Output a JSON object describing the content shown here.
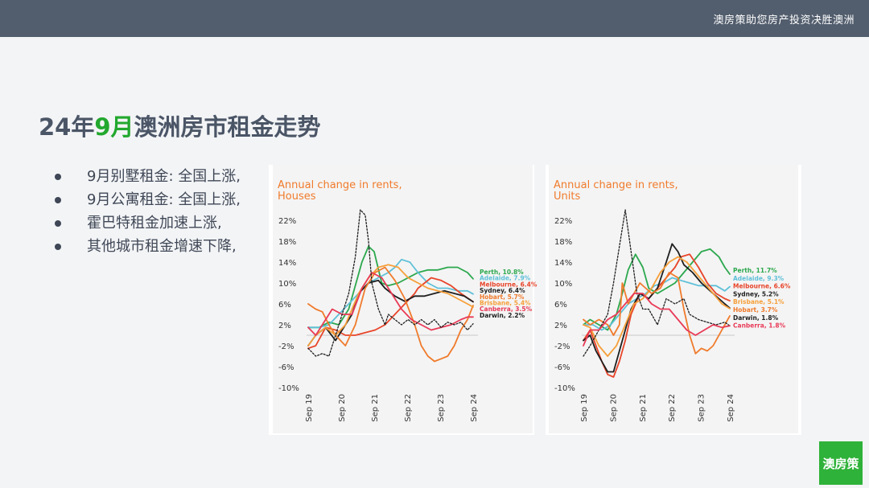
{
  "header": {
    "slogan": "澳房策助您房产投资决胜澳洲"
  },
  "title": {
    "prefix": "24年",
    "highlight": "9月",
    "suffix": "澳洲房市租金走势"
  },
  "bullets": [
    "9月别墅租金: 全国上涨,",
    "9月公寓租金: 全国上涨,",
    "霍巴特租金加速上涨,",
    "其他城市租金增速下降,"
  ],
  "logo": {
    "text": "澳房策"
  },
  "colors": {
    "accent": "#22a82e",
    "title_orange": "#f07b2c",
    "header_bg": "#525d6d"
  },
  "chart_data": [
    {
      "type": "line",
      "title": "Annual change in rents,",
      "subtitle": "Houses",
      "yticks": [
        "22%",
        "18%",
        "14%",
        "10%",
        "6%",
        "2%",
        "-2%",
        "-6%",
        "-10%"
      ],
      "ylim": [
        -10,
        22
      ],
      "xlim": [
        2019.67,
        2024.67
      ],
      "xticks": [
        {
          "label": "Sep 19",
          "x": 2019.67
        },
        {
          "label": "Sep 20",
          "x": 2020.67
        },
        {
          "label": "Sep 21",
          "x": 2021.67
        },
        {
          "label": "Sep 22",
          "x": 2022.67
        },
        {
          "label": "Sep 23",
          "x": 2023.67
        },
        {
          "label": "Sep 24",
          "x": 2024.67
        }
      ],
      "series": [
        {
          "name": "Perth, 10.8%",
          "color": "#2ca84e",
          "dash": false,
          "x": [
            2019.67,
            2020.0,
            2020.3,
            2020.6,
            2020.9,
            2021.1,
            2021.3,
            2021.5,
            2021.67,
            2021.9,
            2022.1,
            2022.4,
            2022.7,
            2023.0,
            2023.3,
            2023.6,
            2023.9,
            2024.2,
            2024.5,
            2024.67
          ],
          "y": [
            1.5,
            1.5,
            2.5,
            2.0,
            5,
            9.5,
            14,
            17,
            16,
            10,
            9.5,
            10,
            11,
            12,
            12.5,
            12.5,
            13,
            13,
            12,
            10.8
          ]
        },
        {
          "name": "Adelaide, 7.9%",
          "color": "#5fc0d8",
          "dash": false,
          "x": [
            2019.67,
            2020.0,
            2020.3,
            2020.6,
            2020.9,
            2021.2,
            2021.5,
            2021.8,
            2022.1,
            2022.3,
            2022.5,
            2022.75,
            2023.0,
            2023.3,
            2023.6,
            2023.9,
            2024.2,
            2024.5,
            2024.67
          ],
          "y": [
            1.5,
            1.5,
            2.0,
            4.0,
            6,
            8,
            10,
            11,
            12,
            13,
            14.5,
            14,
            12,
            10,
            9,
            9,
            8.5,
            8.5,
            7.9
          ]
        },
        {
          "name": "Melbourne, 6.4%",
          "color": "#e8452a",
          "dash": false,
          "x": [
            2019.67,
            2019.9,
            2020.2,
            2020.5,
            2020.8,
            2021.1,
            2021.4,
            2021.7,
            2022.0,
            2022.3,
            2022.6,
            2022.9,
            2023.0,
            2023.2,
            2023.4,
            2023.7,
            2024.0,
            2024.3,
            2024.67
          ],
          "y": [
            -2.5,
            -2,
            1.5,
            1,
            0,
            0,
            0.5,
            1,
            2,
            4,
            6,
            8,
            9,
            10,
            11,
            10.5,
            9.5,
            8,
            6.4
          ]
        },
        {
          "name": "Sydney, 6.4%",
          "color": "#1f1f1f",
          "dash": false,
          "x": [
            2019.67,
            2019.9,
            2020.2,
            2020.5,
            2020.8,
            2021.0,
            2021.2,
            2021.5,
            2021.8,
            2022.0,
            2022.3,
            2022.6,
            2022.9,
            2023.2,
            2023.5,
            2023.8,
            2024.1,
            2024.4,
            2024.67
          ],
          "y": [
            -2,
            0,
            1.5,
            -1,
            2,
            4,
            8,
            10,
            10.5,
            9,
            7.5,
            6.5,
            7.5,
            7.5,
            8,
            8.5,
            8,
            7.5,
            6.4
          ]
        },
        {
          "name": "Hobart, 5.7%",
          "color": "#f07b2c",
          "dash": false,
          "x": [
            2019.67,
            2019.9,
            2020.1,
            2020.3,
            2020.5,
            2020.8,
            2021.1,
            2021.4,
            2021.7,
            2022.0,
            2022.3,
            2022.6,
            2022.9,
            2023.1,
            2023.3,
            2023.5,
            2023.7,
            2023.9,
            2024.1,
            2024.3,
            2024.5,
            2024.67
          ],
          "y": [
            6,
            5,
            4.5,
            2,
            0,
            -2,
            2,
            9,
            12,
            13,
            10.5,
            7,
            2,
            -2,
            -4,
            -5,
            -4.5,
            -4,
            -2,
            1,
            3,
            5.7
          ]
        },
        {
          "name": "Brisbane, 5.4%",
          "color": "#f6a03a",
          "dash": false,
          "x": [
            2019.67,
            2019.9,
            2020.2,
            2020.5,
            2020.8,
            2021.0,
            2021.2,
            2021.5,
            2021.8,
            2022.1,
            2022.4,
            2022.7,
            2023.0,
            2023.3,
            2023.6,
            2023.9,
            2024.2,
            2024.5,
            2024.67
          ],
          "y": [
            -2,
            0,
            1.5,
            0,
            2,
            5,
            8,
            11,
            13,
            13.5,
            13,
            11,
            10,
            9,
            8.5,
            8,
            7,
            6,
            5.4
          ]
        },
        {
          "name": "Canberra, 3.5%",
          "color": "#e93a57",
          "dash": false,
          "x": [
            2019.67,
            2019.9,
            2020.2,
            2020.4,
            2020.7,
            2021.0,
            2021.3,
            2021.6,
            2021.9,
            2022.2,
            2022.5,
            2022.8,
            2023.1,
            2023.4,
            2023.7,
            2024.0,
            2024.3,
            2024.5,
            2024.67
          ],
          "y": [
            1.5,
            0,
            3,
            5,
            4,
            4,
            9,
            12,
            11,
            8,
            5,
            3,
            2,
            1,
            1.5,
            2,
            3,
            3.5,
            3.5
          ]
        },
        {
          "name": "Darwin, 2.2%",
          "color": "#1f1f1f",
          "dash": true,
          "x": [
            2019.67,
            2019.9,
            2020.1,
            2020.3,
            2020.5,
            2020.7,
            2020.9,
            2021.1,
            2021.25,
            2021.4,
            2021.5,
            2021.6,
            2021.8,
            2022.0,
            2022.1,
            2022.3,
            2022.5,
            2022.7,
            2022.9,
            2023.1,
            2023.3,
            2023.5,
            2023.7,
            2023.9,
            2024.1,
            2024.3,
            2024.5,
            2024.67
          ],
          "y": [
            -2.5,
            -4,
            -3.5,
            -4,
            0,
            4,
            8,
            15,
            24,
            23,
            18,
            10,
            5,
            2,
            4,
            3,
            2,
            3,
            2,
            3,
            2,
            3,
            1.5,
            2.5,
            2,
            2.5,
            1,
            2.2
          ]
        }
      ]
    },
    {
      "type": "line",
      "title": "Annual change in rents,",
      "subtitle": "Units",
      "yticks": [
        "22%",
        "18%",
        "14%",
        "10%",
        "6%",
        "2%",
        "-2%",
        "-6%",
        "-10%"
      ],
      "ylim": [
        -10,
        22
      ],
      "xlim": [
        2019.67,
        2024.67
      ],
      "xticks": [
        {
          "label": "Sep 19",
          "x": 2019.67
        },
        {
          "label": "Sep 20",
          "x": 2020.67
        },
        {
          "label": "Sep 21",
          "x": 2021.67
        },
        {
          "label": "Sep 22",
          "x": 2022.67
        },
        {
          "label": "Sep 23",
          "x": 2023.67
        },
        {
          "label": "Sep 24",
          "x": 2024.67
        }
      ],
      "series": [
        {
          "name": "Perth, 11.7%",
          "color": "#2ca84e",
          "dash": false,
          "x": [
            2019.67,
            2019.9,
            2020.2,
            2020.5,
            2020.8,
            2021.0,
            2021.2,
            2021.45,
            2021.7,
            2021.9,
            2022.2,
            2022.5,
            2022.8,
            2023.1,
            2023.4,
            2023.7,
            2024.0,
            2024.3,
            2024.5,
            2024.67
          ],
          "y": [
            2,
            3,
            2,
            1,
            4,
            8,
            12.5,
            15.5,
            13,
            9,
            8,
            9,
            10,
            12,
            14,
            16,
            16.5,
            15,
            13,
            11.7
          ]
        },
        {
          "name": "Adelaide, 9.3%",
          "color": "#5fc0d8",
          "dash": false,
          "x": [
            2019.67,
            2020.0,
            2020.3,
            2020.6,
            2020.9,
            2021.2,
            2021.5,
            2021.8,
            2022.1,
            2022.4,
            2022.7,
            2023.0,
            2023.3,
            2023.6,
            2023.9,
            2024.2,
            2024.5,
            2024.67
          ],
          "y": [
            2,
            2,
            1,
            2,
            4,
            6,
            7,
            8,
            9.5,
            10,
            11,
            10.5,
            10,
            9.5,
            9.5,
            9.5,
            8.5,
            9.3
          ]
        },
        {
          "name": "Melbourne, 6.6%",
          "color": "#e8452a",
          "dash": false,
          "x": [
            2019.67,
            2019.9,
            2020.1,
            2020.3,
            2020.5,
            2020.7,
            2020.9,
            2021.1,
            2021.3,
            2021.6,
            2021.9,
            2022.2,
            2022.5,
            2022.8,
            2023.0,
            2023.3,
            2023.6,
            2023.9,
            2024.2,
            2024.5,
            2024.67
          ],
          "y": [
            -1,
            1,
            -2,
            -5,
            -7.5,
            -8,
            -5,
            -1,
            4,
            8,
            7,
            9,
            11,
            13,
            15,
            15.5,
            13,
            10,
            8,
            7,
            6.6
          ]
        },
        {
          "name": "Sydney, 5.2%",
          "color": "#1f1f1f",
          "dash": false,
          "x": [
            2019.67,
            2019.9,
            2020.1,
            2020.3,
            2020.5,
            2020.7,
            2020.9,
            2021.1,
            2021.3,
            2021.6,
            2021.9,
            2022.2,
            2022.5,
            2022.7,
            2022.9,
            2023.1,
            2023.4,
            2023.7,
            2024.0,
            2024.3,
            2024.5,
            2024.67
          ],
          "y": [
            -1,
            0,
            -3,
            -5,
            -7,
            -7,
            -3,
            1,
            5,
            8,
            7,
            9,
            14,
            17.5,
            16,
            13.5,
            12,
            10,
            8.5,
            7,
            6,
            5.2
          ]
        },
        {
          "name": "Brisbane, 5.1%",
          "color": "#f6a03a",
          "dash": false,
          "x": [
            2019.67,
            2019.9,
            2020.2,
            2020.5,
            2020.8,
            2021.1,
            2021.4,
            2021.7,
            2022.0,
            2022.3,
            2022.6,
            2022.9,
            2023.2,
            2023.5,
            2023.8,
            2024.1,
            2024.4,
            2024.67
          ],
          "y": [
            2,
            1.5,
            -2,
            -4,
            -2,
            2,
            6,
            7,
            9,
            12,
            14,
            15,
            14,
            12,
            10,
            8,
            6,
            5.1
          ]
        },
        {
          "name": "Hobart, 3.7%",
          "color": "#f07b2c",
          "dash": false,
          "x": [
            2019.67,
            2019.9,
            2020.2,
            2020.5,
            2020.7,
            2020.9,
            2021.0,
            2021.2,
            2021.4,
            2021.6,
            2021.8,
            2022.0,
            2022.3,
            2022.6,
            2022.9,
            2023.1,
            2023.3,
            2023.5,
            2023.7,
            2023.9,
            2024.1,
            2024.3,
            2024.5,
            2024.67
          ],
          "y": [
            3,
            2,
            3,
            2,
            0,
            2,
            10,
            6,
            8,
            10,
            9,
            8,
            9,
            12,
            11,
            5,
            0,
            -3.5,
            -2.5,
            -3,
            -2,
            0,
            2,
            3.7
          ]
        },
        {
          "name": "Darwin, 1.8%",
          "color": "#1f1f1f",
          "dash": true,
          "x": [
            2019.67,
            2019.9,
            2020.1,
            2020.3,
            2020.5,
            2020.7,
            2020.9,
            2021.1,
            2021.3,
            2021.5,
            2021.7,
            2021.9,
            2022.2,
            2022.5,
            2022.8,
            2023.1,
            2023.3,
            2023.6,
            2023.9,
            2024.2,
            2024.5,
            2024.67
          ],
          "y": [
            -4,
            -2,
            0,
            2,
            4,
            10,
            17,
            24,
            16,
            8,
            5,
            5,
            2,
            7,
            6,
            7,
            4,
            3,
            2.5,
            2,
            2.5,
            1.8
          ]
        },
        {
          "name": "Canberra, 1.8%",
          "color": "#e93a57",
          "dash": false,
          "x": [
            2019.67,
            2019.9,
            2020.2,
            2020.5,
            2020.8,
            2021.1,
            2021.4,
            2021.7,
            2022.0,
            2022.3,
            2022.6,
            2022.9,
            2023.2,
            2023.5,
            2023.8,
            2024.1,
            2024.4,
            2024.67
          ],
          "y": [
            -2,
            1,
            1,
            3,
            4,
            6,
            8,
            8,
            6,
            5,
            5,
            3,
            1,
            0,
            1,
            2,
            1.5,
            1.8
          ]
        }
      ]
    }
  ]
}
